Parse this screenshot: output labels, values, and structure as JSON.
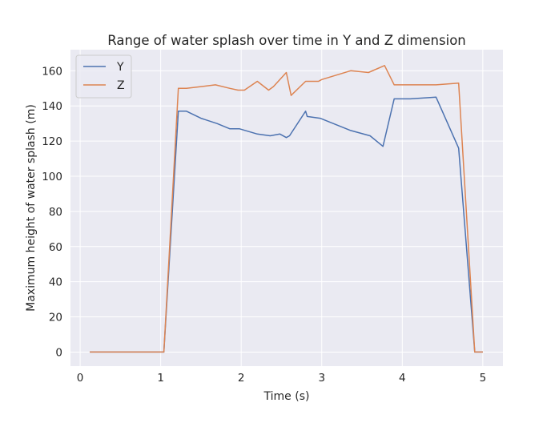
{
  "chart_data": {
    "type": "line",
    "title": "Range of water splash over time in Y and Z dimension",
    "xlabel": "Time (s)",
    "ylabel": "Maximum height of water splash (m)",
    "xlim": [
      -0.12,
      5.25
    ],
    "ylim": [
      -8,
      172
    ],
    "xticks": [
      0,
      1,
      2,
      3,
      4,
      5
    ],
    "yticks": [
      0,
      20,
      40,
      60,
      80,
      100,
      120,
      140,
      160
    ],
    "grid": true,
    "legend": "top-left",
    "series": [
      {
        "name": "Y",
        "color": "#4c72b0",
        "x": [
          0.12,
          1.04,
          1.22,
          1.32,
          1.5,
          1.7,
          1.86,
          1.98,
          2.2,
          2.36,
          2.48,
          2.56,
          2.6,
          2.8,
          2.82,
          2.98,
          3.36,
          3.6,
          3.76,
          3.9,
          4.1,
          4.42,
          4.7,
          4.9,
          5.0
        ],
        "y": [
          0,
          0,
          137,
          137,
          133,
          130,
          127,
          127,
          124,
          123,
          124,
          122,
          123,
          137,
          134,
          133,
          126,
          123,
          117,
          144,
          144,
          145,
          116,
          0,
          0
        ]
      },
      {
        "name": "Z",
        "color": "#dd8452",
        "x": [
          0.12,
          1.04,
          1.22,
          1.32,
          1.5,
          1.68,
          1.86,
          1.96,
          2.04,
          2.2,
          2.34,
          2.4,
          2.56,
          2.62,
          2.8,
          2.96,
          3.0,
          3.36,
          3.58,
          3.78,
          3.9,
          4.1,
          4.42,
          4.7,
          4.9,
          5.0
        ],
        "y": [
          0,
          0,
          150,
          150,
          151,
          152,
          150,
          149,
          149,
          154,
          149,
          151,
          159,
          146,
          154,
          154,
          155,
          160,
          159,
          163,
          152,
          152,
          152,
          153,
          0,
          0
        ]
      }
    ]
  }
}
